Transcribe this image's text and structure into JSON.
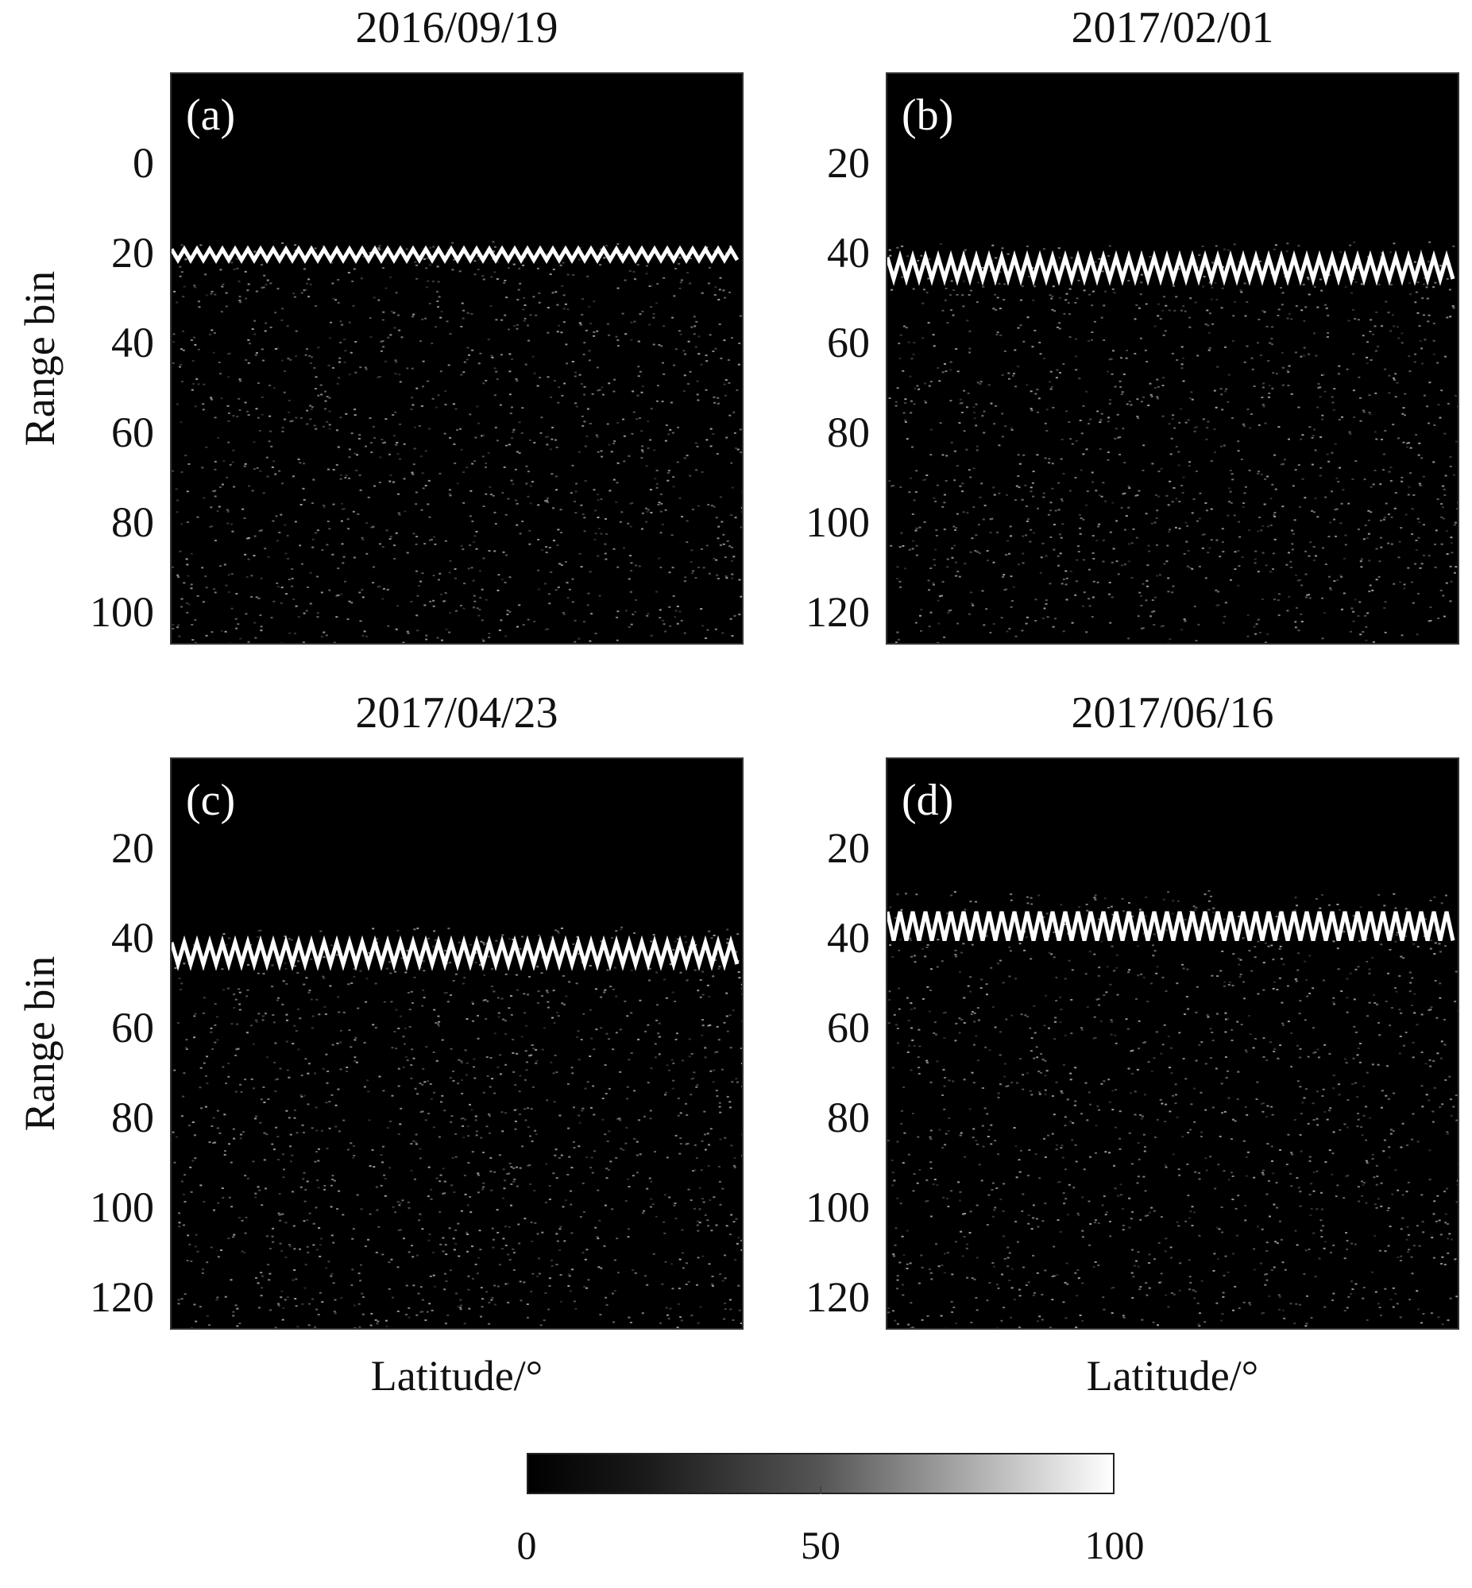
{
  "chart_data": [
    {
      "type": "heatmap",
      "panel_label": "(a)",
      "title": "2016/09/19",
      "ylabel": "Range bin",
      "xlabel": "",
      "y_ticks": [
        "0",
        "20",
        "40",
        "60",
        "80",
        "100"
      ],
      "ylim": [
        -19,
        107
      ],
      "surface_range_bin_range": [
        18,
        24
      ],
      "colormap": "gray",
      "value_range": [
        0,
        100
      ]
    },
    {
      "type": "heatmap",
      "panel_label": "(b)",
      "title": "2017/02/01",
      "ylabel": "",
      "xlabel": "",
      "y_ticks": [
        "20",
        "40",
        "60",
        "80",
        "100",
        "120"
      ],
      "ylim": [
        1,
        127
      ],
      "surface_range_bin_range": [
        38,
        50
      ],
      "colormap": "gray",
      "value_range": [
        0,
        100
      ]
    },
    {
      "type": "heatmap",
      "panel_label": "(c)",
      "title": "2017/04/23",
      "ylabel": "Range bin",
      "xlabel": "Latitude/°",
      "y_ticks": [
        "20",
        "40",
        "60",
        "80",
        "100",
        "120"
      ],
      "ylim": [
        1,
        127
      ],
      "surface_range_bin_range": [
        38,
        50
      ],
      "colormap": "gray",
      "value_range": [
        0,
        100
      ]
    },
    {
      "type": "heatmap",
      "panel_label": "(d)",
      "title": "2017/06/16",
      "ylabel": "",
      "xlabel": "Latitude/°",
      "y_ticks": [
        "20",
        "40",
        "60",
        "80",
        "100",
        "120"
      ],
      "ylim": [
        1,
        127
      ],
      "surface_range_bin_range": [
        30,
        46
      ],
      "colormap": "gray",
      "value_range": [
        0,
        100
      ]
    }
  ],
  "colorbar": {
    "ticks": [
      "0",
      "50",
      "100"
    ],
    "colors": {
      "low": "#000000",
      "high": "#ffffff"
    }
  }
}
